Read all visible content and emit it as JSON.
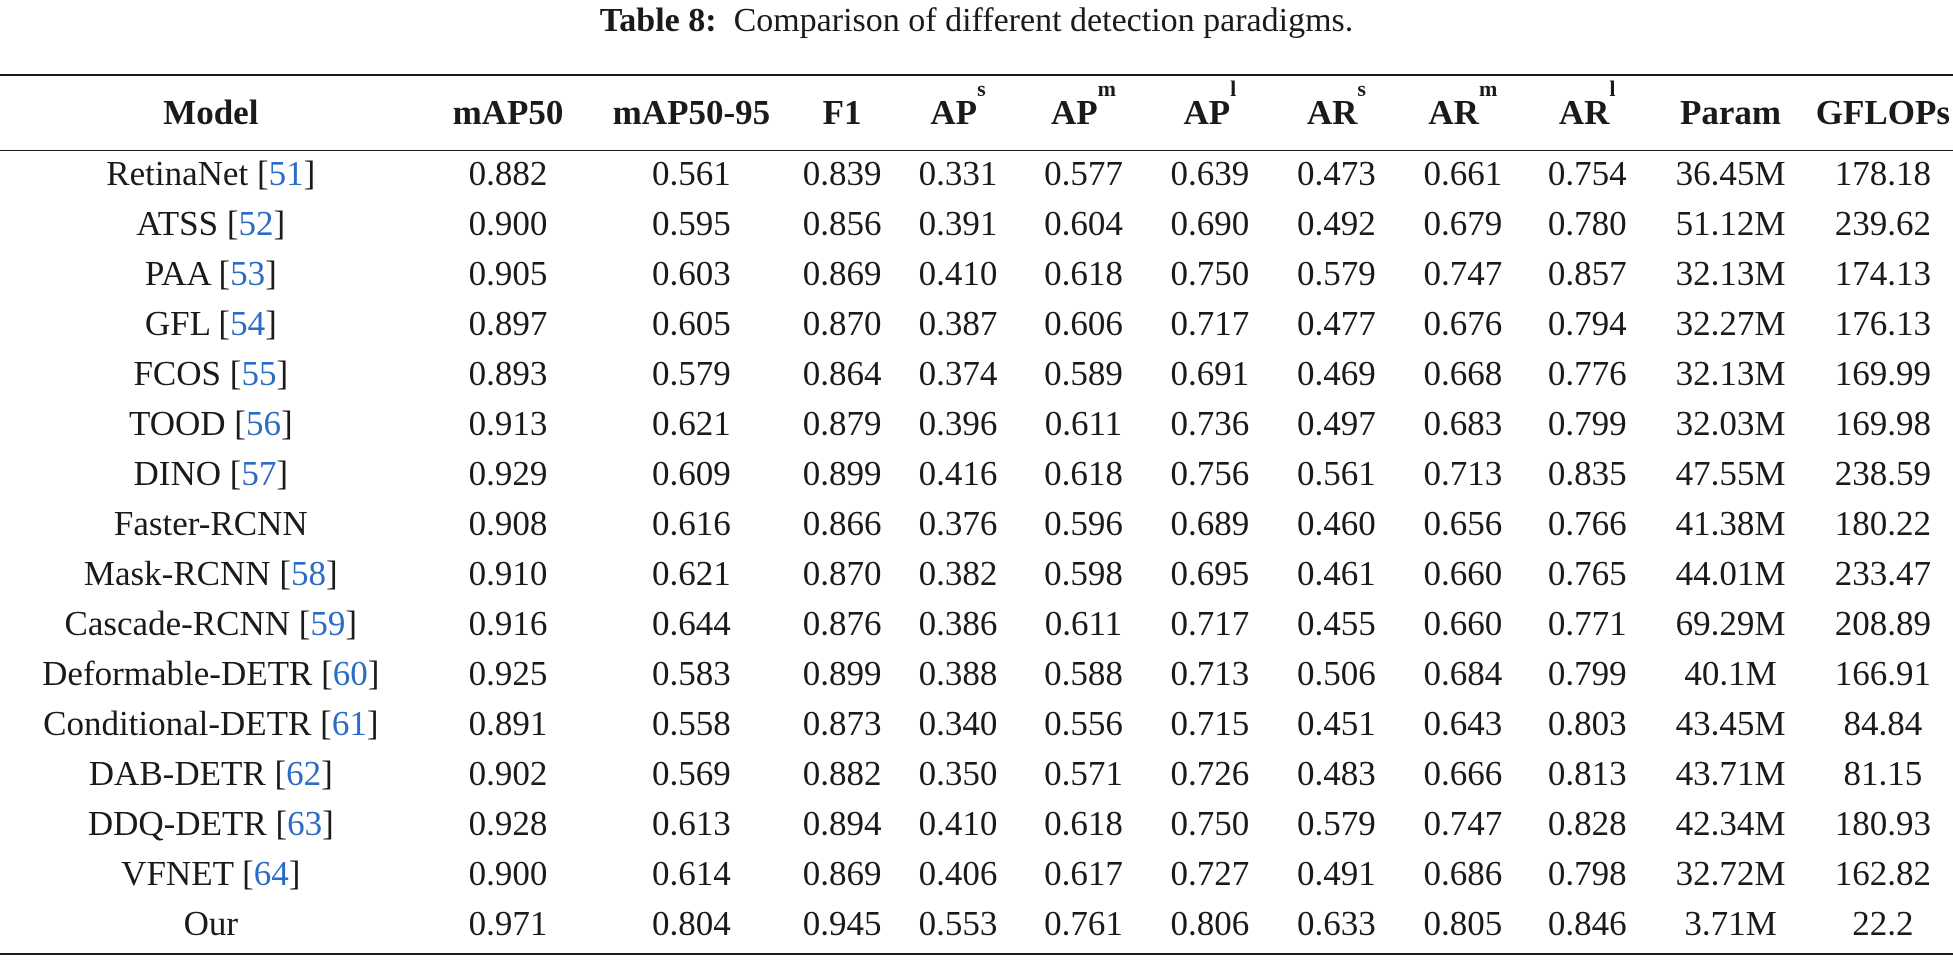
{
  "caption": {
    "label": "Table 8:",
    "text": "Comparison of different detection paradigms."
  },
  "headers": [
    {
      "base": "Model",
      "sup": ""
    },
    {
      "base": "mAP50",
      "sup": ""
    },
    {
      "base": "mAP50-95",
      "sup": ""
    },
    {
      "base": "F1",
      "sup": ""
    },
    {
      "base": "AP",
      "sup": "s"
    },
    {
      "base": "AP",
      "sup": "m"
    },
    {
      "base": "AP",
      "sup": "l"
    },
    {
      "base": "AR",
      "sup": "s"
    },
    {
      "base": "AR",
      "sup": "m"
    },
    {
      "base": "AR",
      "sup": "l"
    },
    {
      "base": "Param",
      "sup": ""
    },
    {
      "base": "GFLOPs",
      "sup": ""
    }
  ],
  "rows": [
    {
      "model": "RetinaNet",
      "ref": "51",
      "values": [
        "0.882",
        "0.561",
        "0.839",
        "0.331",
        "0.577",
        "0.639",
        "0.473",
        "0.661",
        "0.754",
        "36.45M",
        "178.18"
      ]
    },
    {
      "model": "ATSS",
      "ref": "52",
      "values": [
        "0.900",
        "0.595",
        "0.856",
        "0.391",
        "0.604",
        "0.690",
        "0.492",
        "0.679",
        "0.780",
        "51.12M",
        "239.62"
      ]
    },
    {
      "model": "PAA",
      "ref": "53",
      "values": [
        "0.905",
        "0.603",
        "0.869",
        "0.410",
        "0.618",
        "0.750",
        "0.579",
        "0.747",
        "0.857",
        "32.13M",
        "174.13"
      ]
    },
    {
      "model": "GFL",
      "ref": "54",
      "values": [
        "0.897",
        "0.605",
        "0.870",
        "0.387",
        "0.606",
        "0.717",
        "0.477",
        "0.676",
        "0.794",
        "32.27M",
        "176.13"
      ]
    },
    {
      "model": "FCOS",
      "ref": "55",
      "values": [
        "0.893",
        "0.579",
        "0.864",
        "0.374",
        "0.589",
        "0.691",
        "0.469",
        "0.668",
        "0.776",
        "32.13M",
        "169.99"
      ]
    },
    {
      "model": "TOOD",
      "ref": "56",
      "values": [
        "0.913",
        "0.621",
        "0.879",
        "0.396",
        "0.611",
        "0.736",
        "0.497",
        "0.683",
        "0.799",
        "32.03M",
        "169.98"
      ]
    },
    {
      "model": "DINO",
      "ref": "57",
      "values": [
        "0.929",
        "0.609",
        "0.899",
        "0.416",
        "0.618",
        "0.756",
        "0.561",
        "0.713",
        "0.835",
        "47.55M",
        "238.59"
      ]
    },
    {
      "model": "Faster-RCNN",
      "ref": "",
      "values": [
        "0.908",
        "0.616",
        "0.866",
        "0.376",
        "0.596",
        "0.689",
        "0.460",
        "0.656",
        "0.766",
        "41.38M",
        "180.22"
      ]
    },
    {
      "model": "Mask-RCNN",
      "ref": "58",
      "values": [
        "0.910",
        "0.621",
        "0.870",
        "0.382",
        "0.598",
        "0.695",
        "0.461",
        "0.660",
        "0.765",
        "44.01M",
        "233.47"
      ]
    },
    {
      "model": "Cascade-RCNN",
      "ref": "59",
      "values": [
        "0.916",
        "0.644",
        "0.876",
        "0.386",
        "0.611",
        "0.717",
        "0.455",
        "0.660",
        "0.771",
        "69.29M",
        "208.89"
      ]
    },
    {
      "model": "Deformable-DETR",
      "ref": "60",
      "values": [
        "0.925",
        "0.583",
        "0.899",
        "0.388",
        "0.588",
        "0.713",
        "0.506",
        "0.684",
        "0.799",
        "40.1M",
        "166.91"
      ]
    },
    {
      "model": "Conditional-DETR",
      "ref": "61",
      "values": [
        "0.891",
        "0.558",
        "0.873",
        "0.340",
        "0.556",
        "0.715",
        "0.451",
        "0.643",
        "0.803",
        "43.45M",
        "84.84"
      ]
    },
    {
      "model": "DAB-DETR",
      "ref": "62",
      "values": [
        "0.902",
        "0.569",
        "0.882",
        "0.350",
        "0.571",
        "0.726",
        "0.483",
        "0.666",
        "0.813",
        "43.71M",
        "81.15"
      ]
    },
    {
      "model": "DDQ-DETR",
      "ref": "63",
      "values": [
        "0.928",
        "0.613",
        "0.894",
        "0.410",
        "0.618",
        "0.750",
        "0.579",
        "0.747",
        "0.828",
        "42.34M",
        "180.93"
      ]
    },
    {
      "model": "VFNET",
      "ref": "64",
      "values": [
        "0.900",
        "0.614",
        "0.869",
        "0.406",
        "0.617",
        "0.727",
        "0.491",
        "0.686",
        "0.798",
        "32.72M",
        "162.82"
      ]
    },
    {
      "model": "Our",
      "ref": "",
      "values": [
        "0.971",
        "0.804",
        "0.945",
        "0.553",
        "0.761",
        "0.806",
        "0.633",
        "0.805",
        "0.846",
        "3.71M",
        "22.2"
      ]
    }
  ],
  "colors": {
    "text": "#1a1a1a",
    "reference_link": "#2b6cc4"
  }
}
